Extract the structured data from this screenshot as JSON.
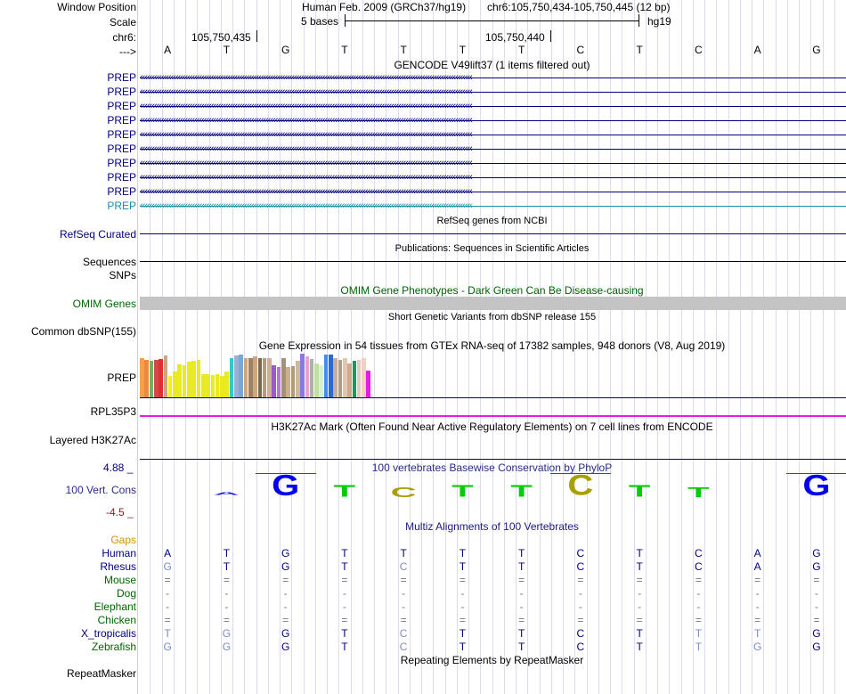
{
  "header": {
    "labels": {
      "window_position": "Window Position",
      "scale": "Scale",
      "chr": "chr6:",
      "strand": "--->"
    },
    "assembly": "Human Feb. 2009 (GRCh37/hg19)",
    "position": "chr6:105,750,434-105,750,445 (12 bp)",
    "scale_text": "5 bases",
    "db": "hg19",
    "coord1": "105,750,435",
    "coord2": "105,750,440",
    "bases": [
      "A",
      "T",
      "G",
      "T",
      "T",
      "T",
      "T",
      "C",
      "T",
      "C",
      "A",
      "G"
    ]
  },
  "gencode": {
    "title": "GENCODE V49lift37 (1 items filtered out)",
    "items": [
      "PREP",
      "PREP",
      "PREP",
      "PREP",
      "PREP",
      "PREP",
      "PREP",
      "PREP",
      "PREP",
      "PREP"
    ]
  },
  "refseq": {
    "title": "RefSeq genes from NCBI",
    "label": "RefSeq Curated"
  },
  "pubs": {
    "title": "Publications: Sequences in Scientific Articles",
    "label1": "Sequences",
    "label2": "SNPs"
  },
  "omim": {
    "title": "OMIM Gene Phenotypes - Dark Green Can Be Disease-causing",
    "label": "OMIM Genes"
  },
  "dbsnp": {
    "title": "Short Genetic Variants from dbSNP release 155",
    "label": "Common dbSNP(155)"
  },
  "gtex": {
    "title": "Gene Expression in 54 tissues from GTEx RNA-seq of 17382 samples, 948 donors (V8, Aug 2019)",
    "label": "PREP",
    "gene2": "RPL35P3",
    "bars": [
      {
        "v": 0.92,
        "c": "#f5a04a"
      },
      {
        "v": 0.88,
        "c": "#f08a3a"
      },
      {
        "v": 0.86,
        "c": "#6fb06f"
      },
      {
        "v": 0.88,
        "c": "#d14a4a"
      },
      {
        "v": 0.9,
        "c": "#e03030"
      },
      {
        "v": 0.98,
        "c": "#c8a882"
      },
      {
        "v": 0.5,
        "c": "#f2f21a"
      },
      {
        "v": 0.6,
        "c": "#eaea22"
      },
      {
        "v": 0.78,
        "c": "#eaea22"
      },
      {
        "v": 0.76,
        "c": "#eaea22"
      },
      {
        "v": 0.84,
        "c": "#eaea22"
      },
      {
        "v": 0.86,
        "c": "#eaea22"
      },
      {
        "v": 0.88,
        "c": "#eaea22"
      },
      {
        "v": 0.55,
        "c": "#eaea22"
      },
      {
        "v": 0.55,
        "c": "#eaea22"
      },
      {
        "v": 0.52,
        "c": "#eaea22"
      },
      {
        "v": 0.55,
        "c": "#eaea22"
      },
      {
        "v": 0.5,
        "c": "#eaea22"
      },
      {
        "v": 0.6,
        "c": "#eaea22"
      },
      {
        "v": 0.92,
        "c": "#33c9c9"
      },
      {
        "v": 0.98,
        "c": "#9ab0d0"
      },
      {
        "v": 1.0,
        "c": "#7aa6d6"
      },
      {
        "v": 0.92,
        "c": "#c8a882"
      },
      {
        "v": 0.92,
        "c": "#a08060"
      },
      {
        "v": 0.96,
        "c": "#c8a882"
      },
      {
        "v": 0.92,
        "c": "#7a6a50"
      },
      {
        "v": 0.92,
        "c": "#b89a70"
      },
      {
        "v": 0.92,
        "c": "#d0b090"
      },
      {
        "v": 0.76,
        "c": "#9a5ac8"
      },
      {
        "v": 0.7,
        "c": "#b07ad0"
      },
      {
        "v": 0.92,
        "c": "#a89078"
      },
      {
        "v": 0.7,
        "c": "#c8b090"
      },
      {
        "v": 0.72,
        "c": "#b09a80"
      },
      {
        "v": 0.86,
        "c": "#d0b898"
      },
      {
        "v": 1.02,
        "c": "#8a7ae0"
      },
      {
        "v": 0.96,
        "c": "#f0a0c8"
      },
      {
        "v": 0.9,
        "c": "#b0b0b0"
      },
      {
        "v": 0.8,
        "c": "#c0e0a0"
      },
      {
        "v": 0.76,
        "c": "#d8f0d0"
      },
      {
        "v": 1.0,
        "c": "#4a8ae8"
      },
      {
        "v": 1.0,
        "c": "#2a6ad8"
      },
      {
        "v": 0.92,
        "c": "#c8b098"
      },
      {
        "v": 0.88,
        "c": "#b89a80"
      },
      {
        "v": 0.92,
        "c": "#e0c8b0"
      },
      {
        "v": 0.8,
        "c": "#d0a890"
      },
      {
        "v": 0.86,
        "c": "#1a9a5a"
      },
      {
        "v": 0.88,
        "c": "#e8c8c0"
      },
      {
        "v": 0.92,
        "c": "#f0d0c0"
      },
      {
        "v": 0.62,
        "c": "#e81ae8"
      }
    ]
  },
  "h3k27ac": {
    "title": "H3K27Ac Mark (Often Found Near Active Regulatory Elements) on 7 cell lines from ENCODE",
    "label": "Layered H3K27Ac"
  },
  "phylop": {
    "title": "100 vertebrates Basewise Conservation by PhyloP",
    "label": "100 Vert. Cons",
    "ymax": "4.88 _",
    "ymin": "-4.5 _",
    "glyphs": [
      {
        "ch": "A",
        "h": 0.12,
        "neg": true,
        "c": "#0000cc"
      },
      {
        "ch": "G",
        "h": 1.0,
        "c": "#0000ee"
      },
      {
        "ch": "T",
        "h": 0.55,
        "c": "#00cc00"
      },
      {
        "ch": "C",
        "h": 0.45,
        "c": "#a8a000"
      },
      {
        "ch": "T",
        "h": 0.55,
        "c": "#00cc00"
      },
      {
        "ch": "T",
        "h": 0.58,
        "c": "#00cc00"
      },
      {
        "ch": "C",
        "h": 0.95,
        "c": "#a8a000"
      },
      {
        "ch": "T",
        "h": 0.55,
        "c": "#00cc00"
      },
      {
        "ch": "T",
        "h": 0.45,
        "c": "#00cc00"
      },
      {
        "ch": "G",
        "h": 1.0,
        "c": "#0000ee"
      }
    ]
  },
  "multiz": {
    "title": "Multiz Alignments of 100 Vertebrates",
    "gaps_label": "Gaps",
    "species": [
      {
        "name": "Human",
        "cls": "navy",
        "seq": [
          "A",
          "T",
          "G",
          "T",
          "T",
          "T",
          "T",
          "C",
          "T",
          "C",
          "A",
          "G"
        ],
        "faint": []
      },
      {
        "name": "Rhesus",
        "cls": "navy",
        "seq": [
          "G",
          "T",
          "G",
          "T",
          "C",
          "T",
          "T",
          "C",
          "T",
          "C",
          "A",
          "G"
        ],
        "faint": [
          0,
          4
        ]
      },
      {
        "name": "Mouse",
        "cls": "dkgreen",
        "seq": [
          "=",
          "=",
          "=",
          "=",
          "=",
          "=",
          "=",
          "=",
          "=",
          "=",
          "=",
          "="
        ],
        "faint": []
      },
      {
        "name": "Dog",
        "cls": "dkgreen",
        "seq": [
          "-",
          "-",
          "-",
          "-",
          "-",
          "-",
          "-",
          "-",
          "-",
          "-",
          "-",
          "-"
        ],
        "faint": []
      },
      {
        "name": "Elephant",
        "cls": "dkgreen",
        "seq": [
          "-",
          "-",
          "-",
          "-",
          "-",
          "-",
          "-",
          "-",
          "-",
          "-",
          "-",
          "-"
        ],
        "faint": []
      },
      {
        "name": "Chicken",
        "cls": "dkgreen",
        "seq": [
          "=",
          "=",
          "=",
          "=",
          "=",
          "=",
          "=",
          "=",
          "=",
          "=",
          "=",
          "="
        ],
        "faint": []
      },
      {
        "name": "X_tropicalis",
        "cls": "navy",
        "seq": [
          "T",
          "G",
          "G",
          "T",
          "C",
          "T",
          "T",
          "C",
          "T",
          "T",
          "T",
          "G"
        ],
        "faint": [
          0,
          1,
          4,
          9,
          10
        ]
      },
      {
        "name": "Zebrafish",
        "cls": "dkgreen",
        "seq": [
          "G",
          "G",
          "G",
          "T",
          "C",
          "T",
          "T",
          "C",
          "T",
          "T",
          "G",
          "G"
        ],
        "faint": [
          0,
          1,
          4,
          9,
          10
        ]
      }
    ]
  },
  "repeatmasker": {
    "title": "Repeating Elements by RepeatMasker",
    "label": "RepeatMasker"
  }
}
